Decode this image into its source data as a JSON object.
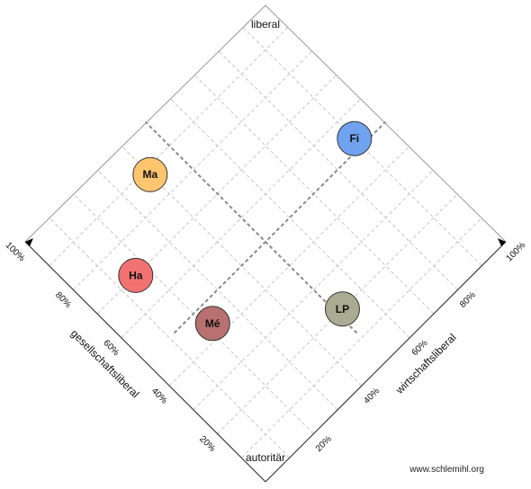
{
  "chart_data": {
    "type": "scatter",
    "corners": {
      "top": "liberal",
      "bottom": "autoritär"
    },
    "axes": {
      "left": {
        "label": "gesellschaftsliberal",
        "ticks": [
          "20%",
          "40%",
          "60%",
          "80%",
          "100%"
        ]
      },
      "right": {
        "label": "wirtschaftsliberal",
        "ticks": [
          "20%",
          "40%",
          "60%",
          "80%",
          "100%"
        ]
      }
    },
    "xlim": [
      0,
      100
    ],
    "ylim": [
      0,
      100
    ],
    "grid": true,
    "quadrant_dividers": true,
    "points": [
      {
        "label": "Ma",
        "gesellschaftsliberal": 88,
        "wirtschaftsliberal": 40,
        "color": "#FFC56F"
      },
      {
        "label": "Fi",
        "gesellschaftsliberal": 53,
        "wirtschaftsliberal": 90,
        "color": "#6FA3F0"
      },
      {
        "label": "Ha",
        "gesellschaftsliberal": 70,
        "wirtschaftsliberal": 16,
        "color": "#F27272"
      },
      {
        "label": "Mé",
        "gesellschaftsliberal": 44,
        "wirtschaftsliberal": 22,
        "color": "#B87070"
      },
      {
        "label": "LP",
        "gesellschaftsliberal": 20,
        "wirtschaftsliberal": 52,
        "color": "#ABAA92"
      }
    ]
  },
  "footer": {
    "source": "www.schlemihl.org"
  }
}
